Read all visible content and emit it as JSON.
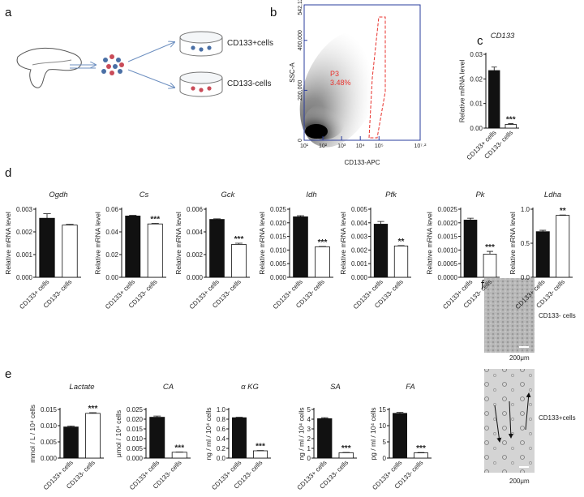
{
  "panel_labels": [
    "a",
    "b",
    "c",
    "d",
    "e",
    "f"
  ],
  "schematic": {
    "labels": [
      "CD133+cells",
      "CD133-cells"
    ]
  },
  "micrographs": [
    {
      "label": "CD133- cells",
      "scale": "200μm"
    },
    {
      "label": "CD133+cells",
      "scale": "200μm"
    }
  ],
  "chart_data": [
    {
      "type": "scatter",
      "xlabel": "CD133-APC",
      "ylabel": "SSC-A",
      "log_x": true,
      "xlim": [
        10,
        15848932
      ],
      "xticks": [
        {
          "value": 10,
          "label": "10¹"
        },
        {
          "value": 100,
          "label": "10²"
        },
        {
          "value": 1000,
          "label": "10³"
        },
        {
          "value": 10000,
          "label": "10⁴"
        },
        {
          "value": 100000,
          "label": "10⁵"
        },
        {
          "value": 15848932,
          "label": "10⁷·²"
        }
      ],
      "ylim": [
        0,
        542122
      ],
      "yticks": [
        0,
        {
          "value": 200000,
          "label": "200,000"
        },
        {
          "value": 400000,
          "label": "400,000"
        },
        {
          "value": 542122,
          "label": "542,122"
        }
      ],
      "gate": {
        "name": "P3",
        "percent": "3.48%",
        "color": "#e8322d"
      }
    },
    {
      "type": "bar",
      "title": "CD133",
      "categories": [
        "CD133+ cells",
        "CD133- cells"
      ],
      "values": [
        0.0234,
        0.0015
      ],
      "errors": [
        0.0014,
        0.0003
      ],
      "colors": [
        "#111111",
        "#ffffff"
      ],
      "ylabel": "Relative mRNA level",
      "ylim": [
        0,
        0.03
      ],
      "yticks": [
        {
          "value": 0,
          "label": "0.00"
        },
        {
          "value": 0.01,
          "label": "0.01"
        },
        {
          "value": 0.02,
          "label": "0.02"
        },
        {
          "value": 0.03,
          "label": "0.03"
        }
      ],
      "significance": "***"
    },
    {
      "type": "bar",
      "title": "Ogdh",
      "categories": [
        "CD133+ cells",
        "CD133- cells"
      ],
      "values": [
        0.0026,
        0.0023
      ],
      "errors": [
        0.0002,
        3e-05
      ],
      "colors": [
        "#111111",
        "#ffffff"
      ],
      "ylabel": "Relative mRNA level",
      "ylim": [
        0,
        0.003
      ],
      "yticks": [
        {
          "value": 0,
          "label": "0.000"
        },
        {
          "value": 0.001,
          "label": "0.001"
        },
        {
          "value": 0.002,
          "label": "0.002"
        },
        {
          "value": 0.003,
          "label": "0.003"
        }
      ]
    },
    {
      "type": "bar",
      "title": "Cs",
      "categories": [
        "CD133+ cells",
        "CD133- cells"
      ],
      "values": [
        0.054,
        0.047
      ],
      "errors": [
        0.0005,
        0.0005
      ],
      "colors": [
        "#111111",
        "#ffffff"
      ],
      "ylabel": "Relative mRNA level",
      "ylim": [
        0,
        0.06
      ],
      "yticks": [
        {
          "value": 0,
          "label": "0.00"
        },
        {
          "value": 0.02,
          "label": "0.02"
        },
        {
          "value": 0.04,
          "label": "0.04"
        },
        {
          "value": 0.06,
          "label": "0.06"
        }
      ],
      "significance": "***"
    },
    {
      "type": "bar",
      "title": "Gck",
      "categories": [
        "CD133+ cells",
        "CD133- cells"
      ],
      "values": [
        0.0051,
        0.0029
      ],
      "errors": [
        5e-05,
        0.0001
      ],
      "colors": [
        "#111111",
        "#ffffff"
      ],
      "ylabel": "Relative mRNA level",
      "ylim": [
        0,
        0.006
      ],
      "yticks": [
        {
          "value": 0,
          "label": "0.000"
        },
        {
          "value": 0.002,
          "label": "0.002"
        },
        {
          "value": 0.004,
          "label": "0.004"
        },
        {
          "value": 0.006,
          "label": "0.006"
        }
      ],
      "significance": "***"
    },
    {
      "type": "bar",
      "title": "Idh",
      "categories": [
        "CD133+ cells",
        "CD133- cells"
      ],
      "values": [
        0.0222,
        0.0112
      ],
      "errors": [
        0.0004,
        0.0001
      ],
      "colors": [
        "#111111",
        "#ffffff"
      ],
      "ylabel": "Relative mRNA level",
      "ylim": [
        0,
        0.025
      ],
      "yticks": [
        {
          "value": 0,
          "label": "0.000"
        },
        {
          "value": 0.005,
          "label": "0.005"
        },
        {
          "value": 0.01,
          "label": "0.010"
        },
        {
          "value": 0.015,
          "label": "0.015"
        },
        {
          "value": 0.02,
          "label": "0.020"
        },
        {
          "value": 0.025,
          "label": "0.025"
        }
      ],
      "significance": "***"
    },
    {
      "type": "bar",
      "title": "Pfk",
      "categories": [
        "CD133+ cells",
        "CD133- cells"
      ],
      "values": [
        0.0039,
        0.0023
      ],
      "errors": [
        0.0002,
        3e-05
      ],
      "colors": [
        "#111111",
        "#ffffff"
      ],
      "ylabel": "Relative mRNA level",
      "ylim": [
        0,
        0.005
      ],
      "yticks": [
        {
          "value": 0,
          "label": "0.000"
        },
        {
          "value": 0.001,
          "label": "0.001"
        },
        {
          "value": 0.002,
          "label": "0.002"
        },
        {
          "value": 0.003,
          "label": "0.003"
        },
        {
          "value": 0.004,
          "label": "0.004"
        },
        {
          "value": 0.005,
          "label": "0.005"
        }
      ],
      "significance": "**"
    },
    {
      "type": "bar",
      "title": "Pk",
      "categories": [
        "CD133+ cells",
        "CD133- cells"
      ],
      "values": [
        0.0021,
        0.00085
      ],
      "errors": [
        7e-05,
        0.0001
      ],
      "colors": [
        "#111111",
        "#ffffff"
      ],
      "ylabel": "Relative mRNA level",
      "ylim": [
        0,
        0.0025
      ],
      "yticks": [
        {
          "value": 0,
          "label": "0.0000"
        },
        {
          "value": 0.0005,
          "label": "0.0005"
        },
        {
          "value": 0.001,
          "label": "0.0010"
        },
        {
          "value": 0.0015,
          "label": "0.0015"
        },
        {
          "value": 0.002,
          "label": "0.0020"
        },
        {
          "value": 0.0025,
          "label": "0.0025"
        }
      ],
      "significance": "***"
    },
    {
      "type": "bar",
      "title": "Ldha",
      "categories": [
        "CD133+ cells",
        "CD133- cells"
      ],
      "values": [
        0.67,
        0.91
      ],
      "errors": [
        0.02,
        0.005
      ],
      "colors": [
        "#111111",
        "#ffffff"
      ],
      "ylabel": "Relative mRNA level",
      "ylim": [
        0,
        1.0
      ],
      "yticks": [
        {
          "value": 0,
          "label": "0.0"
        },
        {
          "value": 0.5,
          "label": "0.5"
        },
        {
          "value": 1,
          "label": "1.0"
        }
      ],
      "significance": "**"
    },
    {
      "type": "bar",
      "title": "Lactate",
      "categories": [
        "CD133+ cells",
        "CD133- cells"
      ],
      "values": [
        0.0096,
        0.0138
      ],
      "errors": [
        0.0003,
        0.0002
      ],
      "colors": [
        "#111111",
        "#ffffff"
      ],
      "ylabel": "mmol / L / 10⁴ cells",
      "ylim": [
        0,
        0.015
      ],
      "yticks": [
        {
          "value": 0,
          "label": "0.000"
        },
        {
          "value": 0.005,
          "label": "0.005"
        },
        {
          "value": 0.01,
          "label": "0.010"
        },
        {
          "value": 0.015,
          "label": "0.015"
        }
      ],
      "significance": "***"
    },
    {
      "type": "bar",
      "title": "CA",
      "categories": [
        "CD133+ cells",
        "CD133- cells"
      ],
      "values": [
        0.021,
        0.003
      ],
      "errors": [
        0.0006,
        0.0001
      ],
      "colors": [
        "#111111",
        "#ffffff"
      ],
      "ylabel": "μmol / 10⁴ cells",
      "ylim": [
        0,
        0.025
      ],
      "yticks": [
        {
          "value": 0,
          "label": "0.000"
        },
        {
          "value": 0.005,
          "label": "0.005"
        },
        {
          "value": 0.01,
          "label": "0.010"
        },
        {
          "value": 0.015,
          "label": "0.015"
        },
        {
          "value": 0.02,
          "label": "0.020"
        },
        {
          "value": 0.025,
          "label": "0.025"
        }
      ],
      "significance": "***"
    },
    {
      "type": "bar",
      "title": "α KG",
      "categories": [
        "CD133+ cells",
        "CD133- cells"
      ],
      "values": [
        0.83,
        0.15
      ],
      "errors": [
        0.01,
        0.005
      ],
      "colors": [
        "#111111",
        "#ffffff"
      ],
      "ylabel": "ng / ml / 10⁴ cells",
      "ylim": [
        0,
        1.0
      ],
      "yticks": [
        {
          "value": 0,
          "label": "0.0"
        },
        {
          "value": 0.2,
          "label": "0.2"
        },
        {
          "value": 0.4,
          "label": "0.4"
        },
        {
          "value": 0.6,
          "label": "0.6"
        },
        {
          "value": 0.8,
          "label": "0.8"
        },
        {
          "value": 1,
          "label": "1.0"
        }
      ],
      "significance": "***"
    },
    {
      "type": "bar",
      "title": "SA",
      "categories": [
        "CD133+ cells",
        "CD133- cells"
      ],
      "values": [
        4.05,
        0.55
      ],
      "errors": [
        0.1,
        0.03
      ],
      "colors": [
        "#111111",
        "#ffffff"
      ],
      "ylabel": "ng / ml / 10⁴ cells",
      "ylim": [
        0,
        5
      ],
      "yticks": [
        0,
        1,
        2,
        3,
        4,
        5
      ],
      "significance": "***"
    },
    {
      "type": "bar",
      "title": "FA",
      "categories": [
        "CD133+ cells",
        "CD133- cells"
      ],
      "values": [
        13.8,
        1.6
      ],
      "errors": [
        0.3,
        0.1
      ],
      "colors": [
        "#111111",
        "#ffffff"
      ],
      "ylabel": "pg / ml / 10⁴ cells",
      "ylim": [
        0,
        15
      ],
      "yticks": [
        0,
        5,
        10,
        15
      ],
      "significance": "***"
    }
  ]
}
